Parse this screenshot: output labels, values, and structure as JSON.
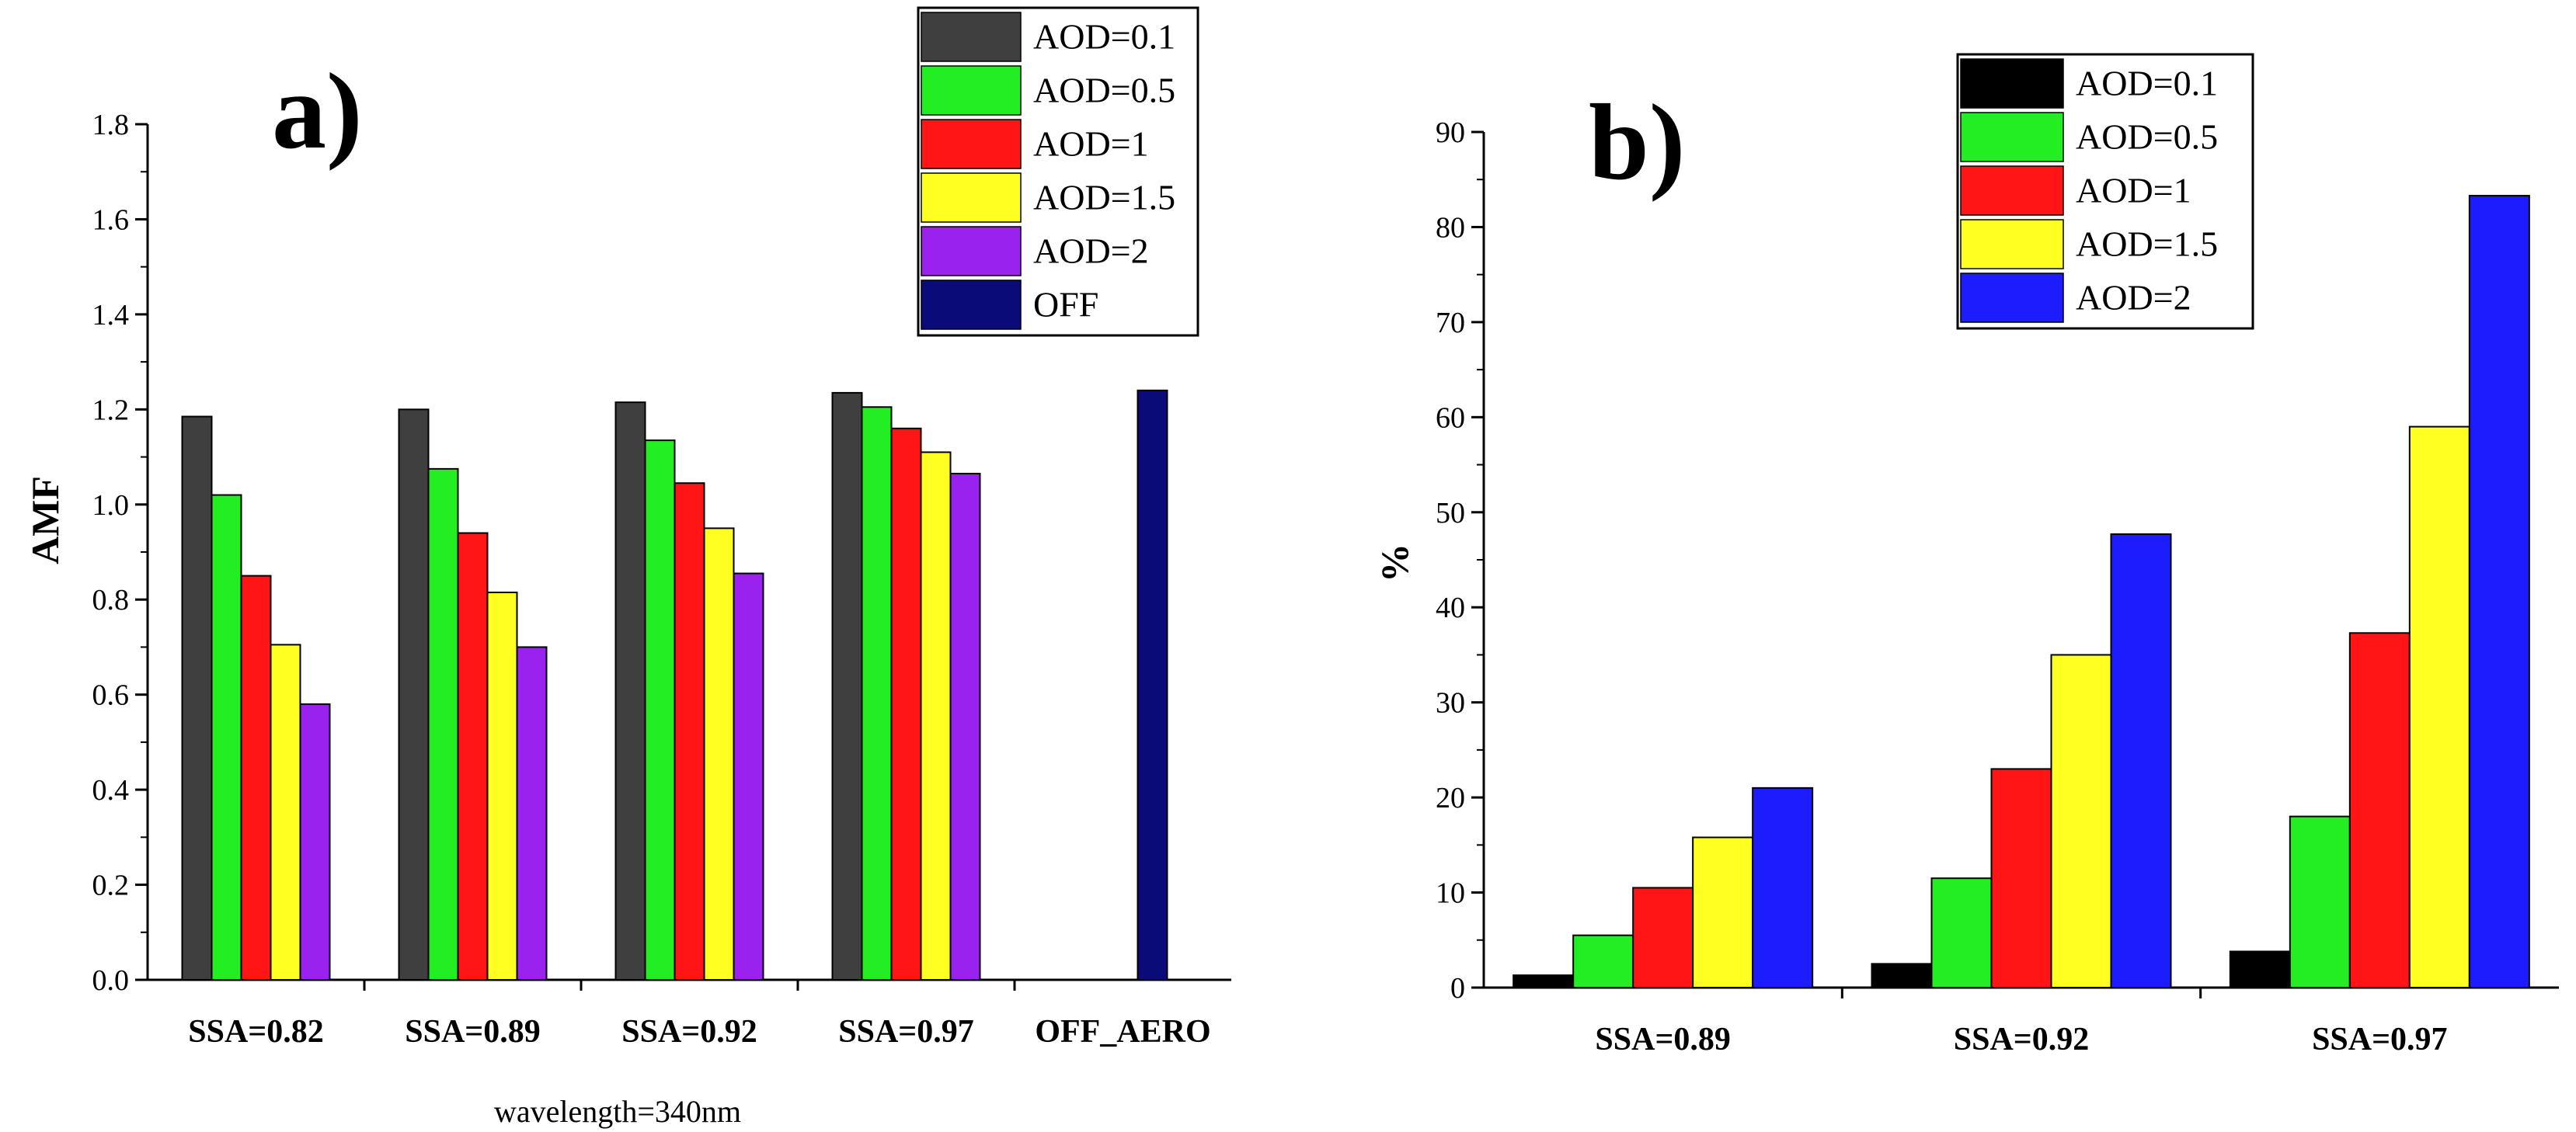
{
  "chart_data": [
    {
      "panel": "a)",
      "type": "bar",
      "title": "",
      "ylabel": "AMF",
      "xlabel": "wavelength=340nm",
      "ylim": [
        0,
        1.8
      ],
      "yticks": [
        "0.0",
        "0.2",
        "0.4",
        "0.6",
        "0.8",
        "1.0",
        "1.2",
        "1.4",
        "1.6",
        "1.8"
      ],
      "categories": [
        "SSA=0.82",
        "SSA=0.89",
        "SSA=0.92",
        "SSA=0.97",
        "OFF_AERO"
      ],
      "series": [
        {
          "name": "AOD=0.1",
          "color": "#3f3f3f",
          "values": [
            1.185,
            1.2,
            1.215,
            1.235,
            null
          ]
        },
        {
          "name": "AOD=0.5",
          "color": "#22ee22",
          "values": [
            1.02,
            1.075,
            1.135,
            1.205,
            null
          ]
        },
        {
          "name": "AOD=1",
          "color": "#ff1515",
          "values": [
            0.85,
            0.94,
            1.045,
            1.16,
            null
          ]
        },
        {
          "name": "AOD=1.5",
          "color": "#ffff22",
          "values": [
            0.705,
            0.815,
            0.95,
            1.11,
            null
          ]
        },
        {
          "name": "AOD=2",
          "color": "#9922ee",
          "values": [
            0.58,
            0.7,
            0.855,
            1.065,
            null
          ]
        },
        {
          "name": "OFF",
          "color": "#0a0a78",
          "values": [
            null,
            null,
            null,
            null,
            1.24
          ]
        }
      ],
      "legend_position": "top-right"
    },
    {
      "panel": "b)",
      "type": "bar",
      "title": "",
      "ylabel": "%",
      "xlabel": "",
      "ylim": [
        0,
        90
      ],
      "yticks": [
        "0",
        "10",
        "20",
        "30",
        "40",
        "50",
        "60",
        "70",
        "80",
        "90"
      ],
      "categories": [
        "SSA=0.89",
        "SSA=0.92",
        "SSA=0.97"
      ],
      "series": [
        {
          "name": "AOD=0.1",
          "color": "#000000",
          "values": [
            1.3,
            2.5,
            3.8
          ]
        },
        {
          "name": "AOD=0.5",
          "color": "#22ee22",
          "values": [
            5.5,
            11.5,
            18
          ]
        },
        {
          "name": "AOD=1",
          "color": "#ff1515",
          "values": [
            10.5,
            23,
            37.3
          ]
        },
        {
          "name": "AOD=1.5",
          "color": "#ffff22",
          "values": [
            15.8,
            35,
            59
          ]
        },
        {
          "name": "AOD=2",
          "color": "#1c1cff",
          "values": [
            21,
            47.7,
            83.3
          ]
        }
      ],
      "legend_position": "top-center"
    }
  ]
}
